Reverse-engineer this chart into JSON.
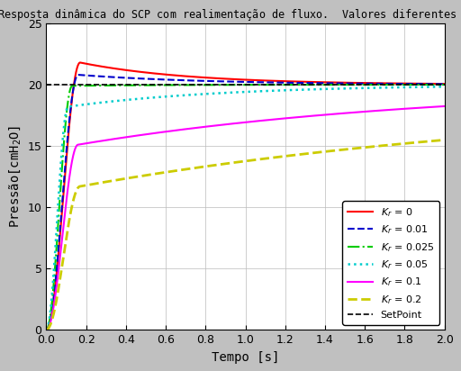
{
  "title": "Resposta dinâmica do SCP com realimentação de fluxo.  Valores diferentes de $K_r$",
  "xlabel": "Tempo [s]",
  "ylabel": "Pressão[cmH$_2$O]",
  "xlim": [
    0,
    2
  ],
  "ylim": [
    0,
    25
  ],
  "xticks": [
    0,
    0.2,
    0.4,
    0.6,
    0.8,
    1.0,
    1.2,
    1.4,
    1.6,
    1.8,
    2.0
  ],
  "yticks": [
    0,
    5,
    10,
    15,
    20,
    25
  ],
  "setpoint": 20,
  "background_color": "#c0c0c0",
  "plot_bg_color": "#ffffff",
  "series": [
    {
      "label": "$K_r$ = 0",
      "color": "#ff0000",
      "linestyle": "-",
      "lw": 1.5,
      "peak": 21.8,
      "t_peak": 0.17,
      "ss": 20.0,
      "t_rise": 0.07,
      "tau_fall": 0.55
    },
    {
      "label": "$K_r$ = 0.01",
      "color": "#0000cc",
      "linestyle": "--",
      "lw": 1.5,
      "peak": 20.8,
      "t_peak": 0.16,
      "ss": 20.0,
      "t_rise": 0.07,
      "tau_fall": 0.65
    },
    {
      "label": "$K_r$ = 0.025",
      "color": "#00cc00",
      "linestyle": "-.",
      "lw": 1.5,
      "peak": 19.9,
      "t_peak": 0.13,
      "ss": 20.0,
      "t_rise": 0.07,
      "tau_fall": 0.5
    },
    {
      "label": "$K_r$ = 0.05",
      "color": "#00cccc",
      "linestyle": ":",
      "lw": 1.8,
      "peak": 18.2,
      "t_peak": 0.11,
      "ss": 20.0,
      "t_rise": 0.07,
      "tau_fall": 0.8
    },
    {
      "label": "$K_r$ = 0.1",
      "color": "#ff00ff",
      "linestyle": "-",
      "lw": 1.5,
      "peak": 15.1,
      "t_peak": 0.16,
      "ss": 20.0,
      "t_rise": 0.07,
      "tau_fall": 1.8
    },
    {
      "label": "$K_r$ = 0.2",
      "color": "#cccc00",
      "linestyle": "--",
      "lw": 2.0,
      "peak": 11.7,
      "t_peak": 0.17,
      "ss": 19.0,
      "t_rise": 0.07,
      "tau_fall": 2.5
    }
  ]
}
